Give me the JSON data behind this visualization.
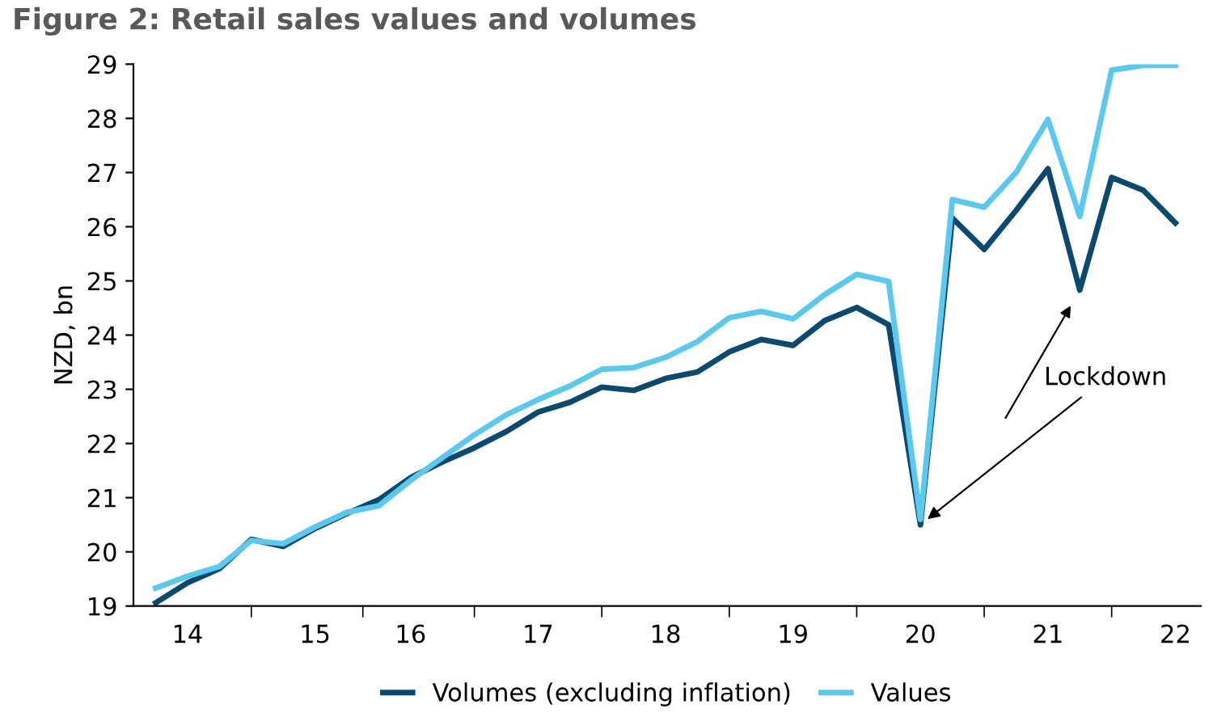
{
  "chart_data": {
    "type": "line",
    "title": "Figure 2: Retail sales values and volumes",
    "ylabel": "NZD, bn",
    "categories": [
      null,
      "14",
      null,
      null,
      null,
      "15",
      null,
      null,
      "16",
      null,
      null,
      null,
      "17",
      null,
      null,
      null,
      "18",
      null,
      null,
      null,
      "19",
      null,
      null,
      null,
      "20",
      null,
      null,
      null,
      "21",
      null,
      null,
      null,
      "22"
    ],
    "series": [
      {
        "name": "Volumes (excluding inflation)",
        "color": "#0b4a6e",
        "values": [
          19.06,
          19.43,
          19.69,
          20.23,
          20.1,
          20.43,
          20.71,
          20.96,
          21.37,
          21.66,
          21.92,
          22.22,
          22.58,
          22.76,
          23.04,
          22.98,
          23.2,
          23.32,
          23.69,
          23.92,
          23.81,
          24.27,
          24.51,
          24.19,
          20.5,
          26.16,
          25.58,
          26.3,
          27.07,
          24.83,
          26.91,
          26.67,
          26.07
        ]
      },
      {
        "name": "Values",
        "color": "#5bc8ec",
        "values": [
          19.33,
          19.55,
          19.73,
          20.21,
          20.15,
          20.46,
          20.73,
          20.85,
          21.32,
          21.74,
          22.16,
          22.53,
          22.81,
          23.06,
          23.37,
          23.4,
          23.59,
          23.88,
          24.32,
          24.44,
          24.3,
          24.75,
          25.12,
          24.99,
          20.6,
          26.5,
          26.36,
          27.0,
          27.98,
          26.19,
          28.89,
          28.98,
          28.98
        ]
      }
    ],
    "ylim": [
      19,
      29
    ],
    "yticks": [
      19,
      20,
      21,
      22,
      23,
      24,
      25,
      26,
      27,
      28,
      29
    ],
    "annotations": [
      {
        "text": "Lockdown",
        "x": "20",
        "y": 20.5
      }
    ],
    "grid": false,
    "legend": "bottom",
    "marker": "none",
    "line_style": "solid"
  }
}
